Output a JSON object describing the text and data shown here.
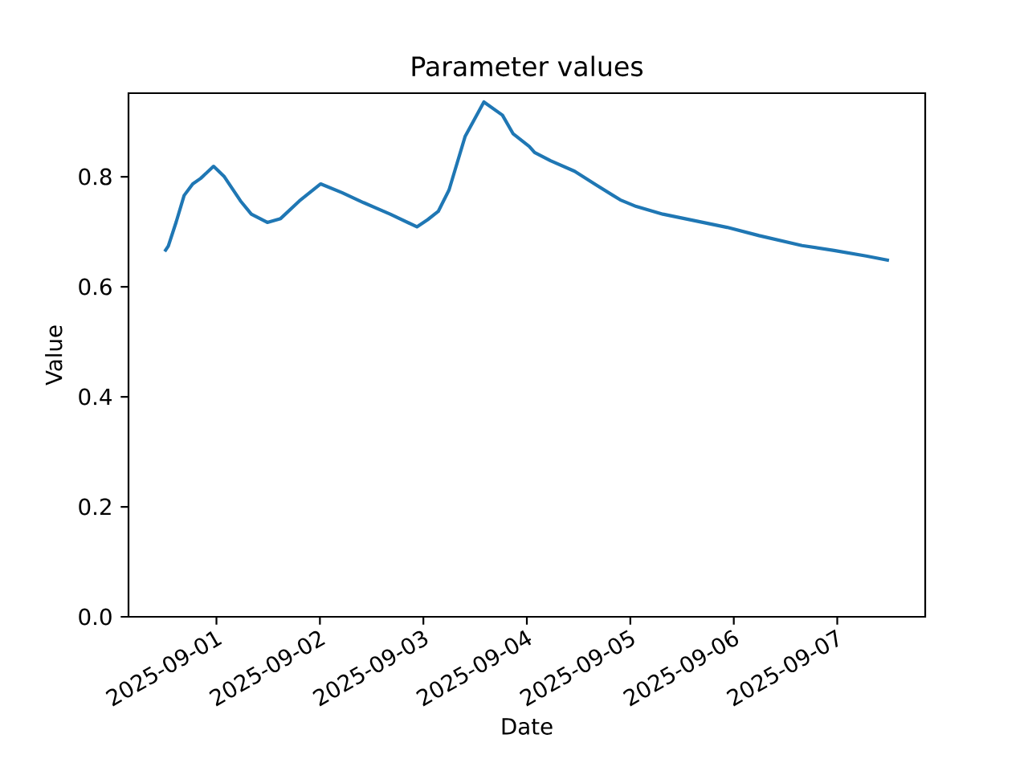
{
  "chart_data": {
    "type": "line",
    "title": "Parameter values",
    "xlabel": "Date",
    "ylabel": "Value",
    "xlim": [
      "2025-08-31T03:36",
      "2025-09-07T20:24"
    ],
    "xticks": [
      "2025-09-01",
      "2025-09-02",
      "2025-09-03",
      "2025-09-04",
      "2025-09-05",
      "2025-09-06",
      "2025-09-07"
    ],
    "ylim": [
      0,
      0.952
    ],
    "yticks": [
      {
        "value": 0,
        "label": "0.0"
      },
      {
        "value": 0.2,
        "label": "0.2"
      },
      {
        "value": 0.4,
        "label": "0.4"
      },
      {
        "value": 0.6,
        "label": "0.6"
      },
      {
        "value": 0.8,
        "label": "0.8"
      }
    ],
    "x": [
      "2025-08-31T12:00",
      "2025-08-31T12:50",
      "2025-08-31T14:40",
      "2025-08-31T16:30",
      "2025-08-31T18:30",
      "2025-08-31T20:20",
      "2025-08-31T23:20",
      "2025-09-01T01:50",
      "2025-09-01T05:35",
      "2025-09-01T08:05",
      "2025-09-01T11:48",
      "2025-09-01T14:53",
      "2025-09-01T19:14",
      "2025-09-02T00:11",
      "2025-09-02T05:08",
      "2025-09-02T10:07",
      "2025-09-02T16:18",
      "2025-09-02T22:30",
      "2025-09-03T01:00",
      "2025-09-03T03:27",
      "2025-09-03T05:57",
      "2025-09-03T09:40",
      "2025-09-03T14:02",
      "2025-09-03T18:20",
      "2025-09-03T20:50",
      "2025-09-04T00:34",
      "2025-09-04T01:48",
      "2025-09-04T05:30",
      "2025-09-04T11:05",
      "2025-09-04T16:04",
      "2025-09-04T21:39",
      "2025-09-05T01:22",
      "2025-09-05T07:33",
      "2025-09-05T15:00",
      "2025-09-05T22:26",
      "2025-09-06T05:52",
      "2025-09-06T15:49",
      "2025-09-06T23:16",
      "2025-09-07T06:42",
      "2025-09-07T12:00"
    ],
    "series": [
      {
        "color": "#1f77b4",
        "values": [
          0.664,
          0.674,
          0.718,
          0.766,
          0.787,
          0.797,
          0.819,
          0.8,
          0.756,
          0.732,
          0.717,
          0.724,
          0.756,
          0.787,
          0.771,
          0.753,
          0.732,
          0.709,
          0.722,
          0.737,
          0.776,
          0.873,
          0.936,
          0.912,
          0.878,
          0.855,
          0.844,
          0.829,
          0.81,
          0.785,
          0.758,
          0.746,
          0.732,
          0.72,
          0.708,
          0.693,
          0.675,
          0.666,
          0.656,
          0.648
        ]
      }
    ]
  }
}
